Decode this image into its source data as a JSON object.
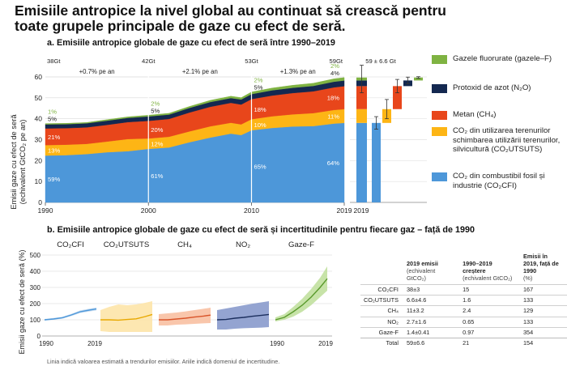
{
  "title": "Emisiile antropice la nivel global au continuat să crească pentru toate grupele principale de gaze cu efect de seră.",
  "panel_a": {
    "title": "a. Emisiile antropice globale de gaze cu efect de seră între 1990–2019",
    "ylabel_line1": "Emisii gaze cu efect de seră",
    "ylabel_line2": "(echivalent GtCO₂ pe an)",
    "growth_labels": [
      "+0.7% pe an",
      "+2.1% pe an",
      "+1.3% pe an"
    ],
    "total_labels": [
      "38Gt",
      "42Gt",
      "53Gt",
      "59Gt"
    ],
    "uncertainty_label": "59 ± 6.6 Gt",
    "bar_year_label": "2019",
    "yticks": [
      "0",
      "10",
      "20",
      "30",
      "40",
      "50",
      "60"
    ],
    "xticks": [
      "1990",
      "2000",
      "2010",
      "2019"
    ]
  },
  "legend": [
    {
      "label": "Gazele fluorurate (gazele–F)",
      "color": "#7fb342"
    },
    {
      "label": "Protoxid de azot (N₂O)",
      "color": "#142850"
    },
    {
      "label": "Metan (CH₄)",
      "color": "#e8461b"
    },
    {
      "label": "CO₂ din utilizarea terenurilor schimbarea utilizării terenurilor, silvicultură (CO₂UTSUTS)",
      "color": "#fdb515"
    },
    {
      "label": "CO₂ din combustibil fosil și industrie (CO₂CFI)",
      "color": "#4d97d9"
    }
  ],
  "panel_b": {
    "title": "b. Emisiile antropice globale de gaze cu efect de seră și incertitudinile pentru fiecare gaz – față de 1990",
    "ylabel": "Emisii gaze cu efect de seră (%)",
    "panels": [
      {
        "label": "CO₂CFI",
        "color": "#4d97d9",
        "band": "#c6dcf1"
      },
      {
        "label": "CO₂UTSUTS",
        "color": "#e8a800",
        "band": "#fde6ad"
      },
      {
        "label": "CH₄",
        "color": "#d9552a",
        "band": "#f9c3a6"
      },
      {
        "label": "NO₂",
        "color": "#1c2f5e",
        "band": "#8e9fcf"
      },
      {
        "label": "Gaze-F",
        "color": "#5a9a2c",
        "band": "#c4e2a3"
      }
    ],
    "yticks": [
      "0",
      "100",
      "200",
      "300",
      "400",
      "500"
    ],
    "xticks": [
      "1990",
      "2019"
    ],
    "note": "Linia indică valoarea estimată a trendurilor emisiilor. Ariile indică domeniul de incertitudine."
  },
  "table": {
    "headers": [
      {
        "main": "2019 emisii",
        "sub": "(echivalent GtCO₂)"
      },
      {
        "main": "1990–2019 creștere",
        "sub": "(echivalent GtCO₂)"
      },
      {
        "main": "Emisii în 2019, față de 1990",
        "sub": "(%)"
      }
    ],
    "rows": [
      {
        "gas": "CO₂CFI",
        "emissions": "38±3",
        "growth": "15",
        "percent": "167"
      },
      {
        "gas": "CO₂UTSUTS",
        "emissions": "6.6±4.6",
        "growth": "1.6",
        "percent": "133"
      },
      {
        "gas": "CH₄",
        "emissions": "11±3.2",
        "growth": "2.4",
        "percent": "129"
      },
      {
        "gas": "NO₂",
        "emissions": "2.7±1.6",
        "growth": "0.65",
        "percent": "133"
      },
      {
        "gas": "Gaze-F",
        "emissions": "1.4±0.41",
        "growth": "0.97",
        "percent": "354"
      },
      {
        "gas": "Total",
        "emissions": "59±6.6",
        "growth": "21",
        "percent": "154"
      }
    ]
  },
  "chart_data": [
    {
      "type": "area",
      "title": "a. Emisiile antropice globale de gaze cu efect de seră între 1990–2019",
      "xlabel": "",
      "ylabel": "Emisii gaze cu efect de seră (echivalent GtCO₂ pe an)",
      "ylim": [
        0,
        60
      ],
      "x": [
        1990,
        1992,
        1994,
        1996,
        1998,
        2000,
        2002,
        2004,
        2006,
        2008,
        2009,
        2010,
        2012,
        2014,
        2016,
        2018,
        2019
      ],
      "series": [
        {
          "name": "CO₂CFI",
          "values": [
            22.4,
            22.6,
            23.1,
            24.0,
            24.5,
            25.6,
            26.3,
            28.8,
            31.0,
            32.9,
            32.2,
            34.5,
            35.6,
            36.3,
            36.5,
            37.7,
            38.0
          ]
        },
        {
          "name": "CO₂UTSUTS",
          "values": [
            5.0,
            5.0,
            4.9,
            5.1,
            5.8,
            5.0,
            5.1,
            5.2,
            5.4,
            5.2,
            5.1,
            5.3,
            5.6,
            5.8,
            6.2,
            6.5,
            6.6
          ]
        },
        {
          "name": "CH₄",
          "values": [
            8.0,
            7.9,
            7.9,
            8.0,
            8.1,
            8.4,
            8.5,
            9.0,
            9.3,
            9.5,
            9.5,
            9.6,
            9.9,
            10.2,
            10.4,
            10.8,
            11.0
          ]
        },
        {
          "name": "N₂O",
          "values": [
            1.9,
            1.9,
            1.9,
            2.0,
            2.0,
            2.1,
            2.1,
            2.2,
            2.3,
            2.3,
            2.4,
            2.4,
            2.5,
            2.5,
            2.6,
            2.7,
            2.7
          ]
        },
        {
          "name": "Gaze-F",
          "values": [
            0.4,
            0.4,
            0.4,
            0.5,
            0.5,
            0.6,
            0.6,
            0.7,
            0.8,
            0.9,
            0.9,
            1.0,
            1.1,
            1.2,
            1.3,
            1.4,
            1.4
          ]
        }
      ],
      "share_labels": [
        {
          "year": 1990,
          "CO₂CFI": "59%",
          "CO₂UTSUTS": "13%",
          "CH₄": "21%",
          "N₂O": "5%",
          "Gaze-F": "1%"
        },
        {
          "year": 2000,
          "CO₂CFI": "61%",
          "CO₂UTSUTS": "12%",
          "CH₄": "20%",
          "N₂O": "5%",
          "Gaze-F": "2%"
        },
        {
          "year": 2010,
          "CO₂CFI": "65%",
          "CO₂UTSUTS": "10%",
          "CH₄": "18%",
          "N₂O": "5%",
          "Gaze-F": "2%"
        },
        {
          "year": 2019,
          "CO₂CFI": "64%",
          "CO₂UTSUTS": "11%",
          "CH₄": "18%",
          "N₂O": "4%",
          "Gaze-F": "2%"
        }
      ],
      "totals": [
        {
          "year": 1990,
          "label": "38Gt"
        },
        {
          "year": 2000,
          "label": "42Gt"
        },
        {
          "year": 2010,
          "label": "53Gt"
        },
        {
          "year": 2019,
          "label": "59Gt"
        }
      ],
      "growth_rates": [
        "+0.7% pe an",
        "+2.1% pe an",
        "+1.3% pe an"
      ]
    },
    {
      "type": "bar",
      "title": "59 ± 6.6 Gt",
      "categories": [
        "Total",
        "CO₂CFI",
        "CO₂UTSUTS",
        "CH₄",
        "N₂O",
        "Gaze-F"
      ],
      "stack_ranges": [
        [
          0,
          59
        ],
        [
          0,
          38
        ],
        [
          38,
          44.6
        ],
        [
          44.6,
          55.6
        ],
        [
          55.6,
          58.3
        ],
        [
          58.3,
          59.7
        ]
      ],
      "error": [
        6.6,
        3,
        4.6,
        3.2,
        1.6,
        0.41
      ],
      "ylim": [
        0,
        60
      ],
      "xlabel": "2019"
    },
    {
      "type": "line",
      "title": "b. Emisiile antropice globale de gaze cu efect de seră și incertitudinile pentru fiecare gaz – față de 1990",
      "ylabel": "Emisii gaze cu efect de seră (%)",
      "x": [
        1990,
        1995,
        2000,
        2005,
        2010,
        2015,
        2019
      ],
      "series": [
        {
          "name": "CO₂CFI",
          "values": [
            100,
            105,
            113,
            130,
            150,
            160,
            167
          ],
          "lower": [
            95,
            100,
            107,
            123,
            142,
            151,
            158
          ],
          "upper": [
            105,
            111,
            119,
            137,
            158,
            169,
            176
          ]
        },
        {
          "name": "CO₂UTSUTS",
          "values": [
            100,
            100,
            98,
            102,
            106,
            120,
            133
          ],
          "lower": [
            30,
            25,
            25,
            25,
            25,
            25,
            25
          ],
          "upper": [
            160,
            180,
            195,
            190,
            195,
            205,
            215
          ]
        },
        {
          "name": "CH₄",
          "values": [
            100,
            100,
            105,
            110,
            117,
            123,
            129
          ],
          "lower": [
            65,
            65,
            70,
            72,
            75,
            78,
            80
          ],
          "upper": [
            135,
            140,
            145,
            152,
            160,
            168,
            175
          ]
        },
        {
          "name": "NO₂",
          "values": [
            100,
            102,
            110,
            115,
            122,
            128,
            133
          ],
          "lower": [
            40,
            40,
            45,
            48,
            50,
            52,
            55
          ],
          "upper": [
            160,
            170,
            180,
            190,
            200,
            208,
            215
          ]
        },
        {
          "name": "Gaze-F",
          "values": [
            100,
            115,
            150,
            190,
            240,
            300,
            354
          ],
          "lower": [
            90,
            100,
            120,
            150,
            190,
            240,
            280
          ],
          "upper": [
            115,
            135,
            180,
            230,
            290,
            360,
            430
          ]
        }
      ],
      "ylim": [
        0,
        500
      ],
      "xlim": [
        1990,
        2019
      ]
    }
  ]
}
